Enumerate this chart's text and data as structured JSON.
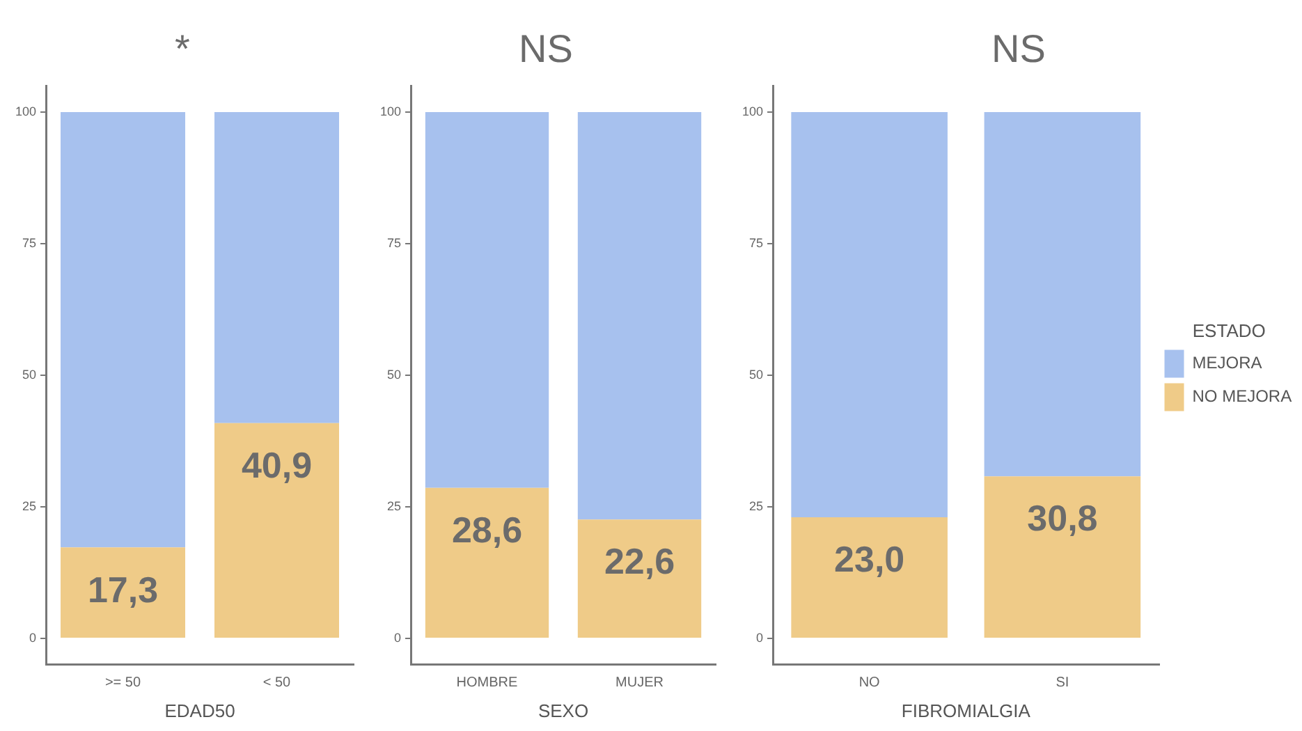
{
  "chart_data": [
    {
      "type": "bar",
      "title": "*",
      "xlabel": "EDAD50",
      "categories": [
        ">= 50",
        "< 50"
      ],
      "stacked": true,
      "ylim": [
        -5,
        105
      ],
      "yticks": [
        0,
        25,
        50,
        75,
        100
      ],
      "grid": false,
      "legend": false,
      "series": [
        {
          "color": "#efcb88",
          "values": [
            17.3,
            40.9
          ],
          "value_labels": [
            "17,3",
            "40,9"
          ]
        },
        {
          "color": "#a7c1ee",
          "values": [
            82.7,
            59.1
          ]
        }
      ]
    },
    {
      "type": "bar",
      "title": "NS",
      "xlabel": "SEXO",
      "categories": [
        "HOMBRE",
        "MUJER"
      ],
      "stacked": true,
      "ylim": [
        -5,
        105
      ],
      "yticks": [
        0,
        25,
        50,
        75,
        100
      ],
      "grid": false,
      "legend": false,
      "series": [
        {
          "color": "#efcb88",
          "values": [
            28.6,
            22.6
          ],
          "value_labels": [
            "28,6",
            "22,6"
          ]
        },
        {
          "color": "#a7c1ee",
          "values": [
            71.4,
            77.4
          ]
        }
      ]
    },
    {
      "type": "bar",
      "title": "NS",
      "xlabel": "FIBROMIALGIA",
      "categories": [
        "NO",
        "SI"
      ],
      "stacked": true,
      "ylim": [
        -5,
        105
      ],
      "yticks": [
        0,
        25,
        50,
        75,
        100
      ],
      "grid": false,
      "legend": "right",
      "legend_title": "ESTADO",
      "series": [
        {
          "name": "NO MEJORA",
          "color": "#efcb88",
          "values": [
            23.0,
            30.8
          ],
          "value_labels": [
            "23,0",
            "30,8"
          ]
        },
        {
          "name": "MEJORA",
          "color": "#a7c1ee",
          "values": [
            77.0,
            69.2
          ]
        }
      ]
    }
  ]
}
